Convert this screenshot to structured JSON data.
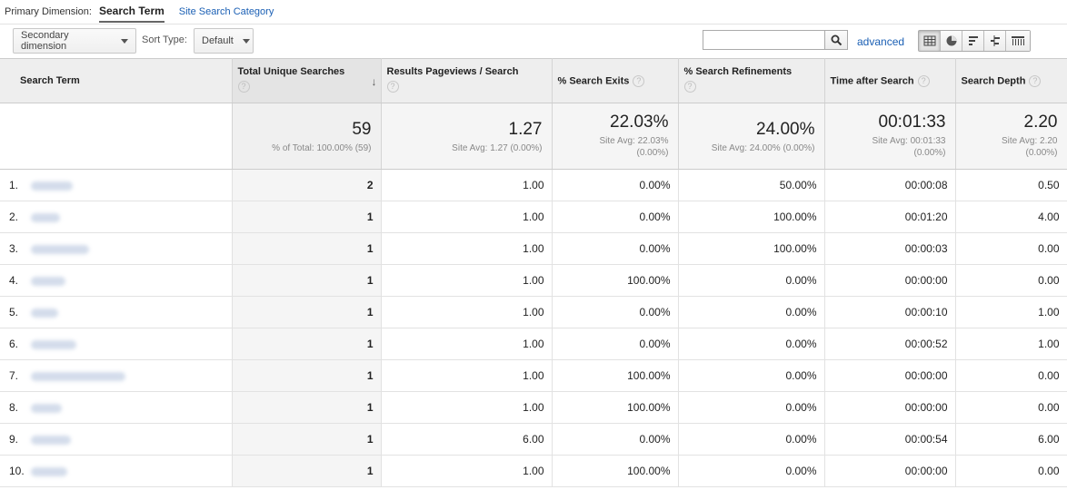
{
  "dimension": {
    "label": "Primary Dimension:",
    "active": "Search Term",
    "other": "Site Search Category"
  },
  "toolbar": {
    "secondary": "Secondary dimension",
    "sort_label": "Sort Type:",
    "sort_value": "Default",
    "search_value": "",
    "advanced": "advanced",
    "views": [
      "grid-view-icon",
      "pie-view-icon",
      "performance-view-icon",
      "comparison-view-icon",
      "pivot-view-icon"
    ]
  },
  "columns": [
    "Search Term",
    "Total Unique Searches",
    "Results Pageviews / Search",
    "% Search Exits",
    "% Search Refinements",
    "Time after Search",
    "Search Depth"
  ],
  "totals": [
    {
      "value": "59",
      "sub": "% of Total: 100.00% (59)"
    },
    {
      "value": "1.27",
      "sub": "Site Avg: 1.27 (0.00%)"
    },
    {
      "value": "22.03%",
      "sub": "Site Avg: 22.03%",
      "sub2": "(0.00%)"
    },
    {
      "value": "24.00%",
      "sub": "Site Avg: 24.00% (0.00%)"
    },
    {
      "value": "00:01:33",
      "sub": "Site Avg: 00:01:33",
      "sub2": "(0.00%)"
    },
    {
      "value": "2.20",
      "sub": "Site Avg: 2.20",
      "sub2": "(0.00%)"
    }
  ],
  "rows": [
    {
      "idx": "1.",
      "blur": 46,
      "vals": [
        "2",
        "1.00",
        "0.00%",
        "50.00%",
        "00:00:08",
        "0.50"
      ]
    },
    {
      "idx": "2.",
      "blur": 32,
      "vals": [
        "1",
        "1.00",
        "0.00%",
        "100.00%",
        "00:01:20",
        "4.00"
      ]
    },
    {
      "idx": "3.",
      "blur": 64,
      "vals": [
        "1",
        "1.00",
        "0.00%",
        "100.00%",
        "00:00:03",
        "0.00"
      ]
    },
    {
      "idx": "4.",
      "blur": 38,
      "vals": [
        "1",
        "1.00",
        "100.00%",
        "0.00%",
        "00:00:00",
        "0.00"
      ]
    },
    {
      "idx": "5.",
      "blur": 30,
      "vals": [
        "1",
        "1.00",
        "0.00%",
        "0.00%",
        "00:00:10",
        "1.00"
      ]
    },
    {
      "idx": "6.",
      "blur": 50,
      "vals": [
        "1",
        "1.00",
        "0.00%",
        "0.00%",
        "00:00:52",
        "1.00"
      ]
    },
    {
      "idx": "7.",
      "blur": 104,
      "vals": [
        "1",
        "1.00",
        "100.00%",
        "0.00%",
        "00:00:00",
        "0.00"
      ]
    },
    {
      "idx": "8.",
      "blur": 34,
      "vals": [
        "1",
        "1.00",
        "100.00%",
        "0.00%",
        "00:00:00",
        "0.00"
      ]
    },
    {
      "idx": "9.",
      "blur": 44,
      "vals": [
        "1",
        "6.00",
        "0.00%",
        "0.00%",
        "00:00:54",
        "6.00"
      ]
    },
    {
      "idx": "10.",
      "blur": 40,
      "vals": [
        "1",
        "1.00",
        "100.00%",
        "0.00%",
        "00:00:00",
        "0.00"
      ]
    }
  ]
}
